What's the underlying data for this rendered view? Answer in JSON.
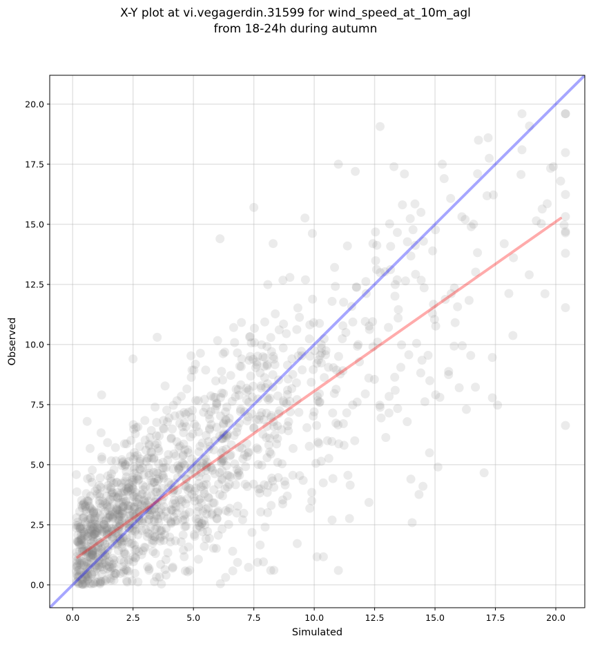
{
  "chart_data": {
    "type": "scatter",
    "title_line1": "X-Y plot at vi.vegagerdin.31599 for wind_speed_at_10m_agl",
    "title_line2": "from 18-24h during autumn",
    "xlabel": "Simulated",
    "ylabel": "Observed",
    "xlim": [
      -0.95,
      21.2
    ],
    "ylim": [
      -0.95,
      21.2
    ],
    "xticks": [
      "0.0",
      "2.5",
      "5.0",
      "7.5",
      "10.0",
      "12.5",
      "15.0",
      "17.5",
      "20.0"
    ],
    "yticks": [
      "0.0",
      "2.5",
      "5.0",
      "7.5",
      "10.0",
      "12.5",
      "15.0",
      "17.5",
      "20.0"
    ],
    "grid": true,
    "point_color": "#808080",
    "point_count": 1400,
    "sample_points": [
      [
        18.6,
        19.6
      ],
      [
        17.2,
        18.6
      ],
      [
        16.8,
        18.5
      ],
      [
        18.6,
        18.1
      ],
      [
        11.0,
        17.5
      ],
      [
        11.7,
        17.2
      ],
      [
        13.3,
        17.4
      ],
      [
        15.3,
        17.5
      ],
      [
        19.9,
        17.4
      ],
      [
        20.2,
        16.8
      ],
      [
        20.4,
        14.7
      ],
      [
        18.9,
        12.9
      ],
      [
        7.5,
        15.7
      ],
      [
        6.1,
        14.4
      ],
      [
        8.3,
        14.2
      ],
      [
        14.0,
        4.4
      ],
      [
        14.5,
        4.1
      ],
      [
        11.0,
        0.6
      ],
      [
        8.2,
        0.6
      ],
      [
        0.6,
        6.8
      ],
      [
        2.5,
        9.4
      ],
      [
        1.2,
        7.9
      ],
      [
        3.5,
        10.3
      ],
      [
        15.2,
        7.8
      ],
      [
        16.0,
        8.2
      ]
    ],
    "identity_line": {
      "color": "#0000ff",
      "from": [
        -0.95,
        -0.95
      ],
      "to": [
        21.2,
        21.2
      ]
    },
    "fit_line": {
      "color": "#ff0000",
      "x": [
        0.2,
        20.2
      ],
      "y": [
        1.15,
        15.25
      ]
    }
  }
}
